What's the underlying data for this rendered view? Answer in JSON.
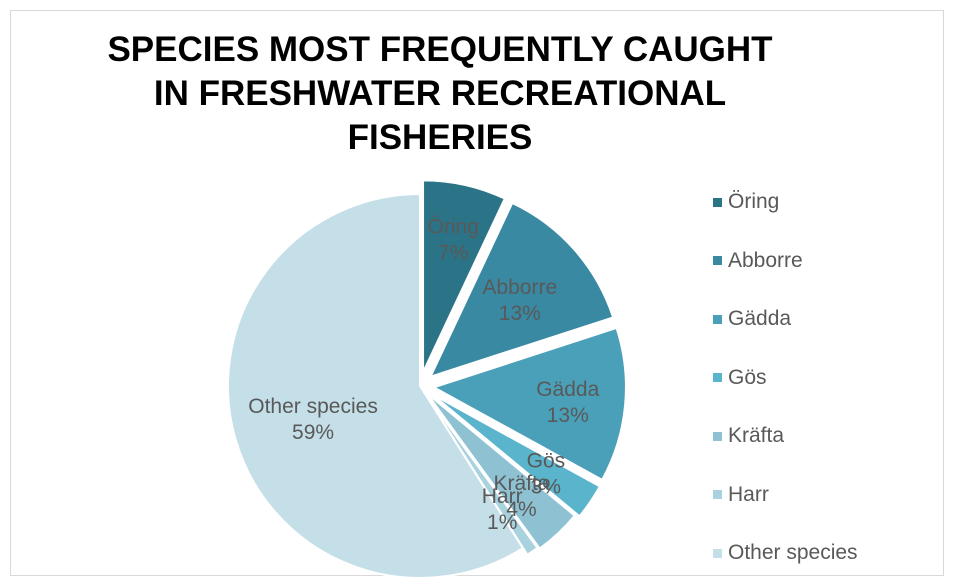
{
  "chart_data": {
    "type": "pie",
    "title": "SPECIES MOST FREQUENTLY CAUGHT IN FRESHWATER RECREATIONAL FISHERIES",
    "slices": [
      {
        "label": "Öring",
        "value": 7,
        "display": "7%",
        "color": "#2b7386"
      },
      {
        "label": "Abborre",
        "value": 13,
        "display": "13%",
        "color": "#3a89a2"
      },
      {
        "label": "Gädda",
        "value": 13,
        "display": "13%",
        "color": "#4aa0b8"
      },
      {
        "label": "Gös",
        "value": 3,
        "display": "3%",
        "color": "#5ab4cc"
      },
      {
        "label": "Kräfta",
        "value": 4,
        "display": "4%",
        "color": "#8ec2d3"
      },
      {
        "label": "Harr",
        "value": 1,
        "display": "1%",
        "color": "#a9d2df"
      },
      {
        "label": "Other species",
        "value": 59,
        "display": "59%",
        "color": "#c5dfe8"
      }
    ],
    "legend": [
      "Öring",
      "Abborre",
      "Gädda",
      "Gös",
      "Kräfta",
      "Harr",
      "Other species"
    ],
    "legend_position": "right"
  }
}
